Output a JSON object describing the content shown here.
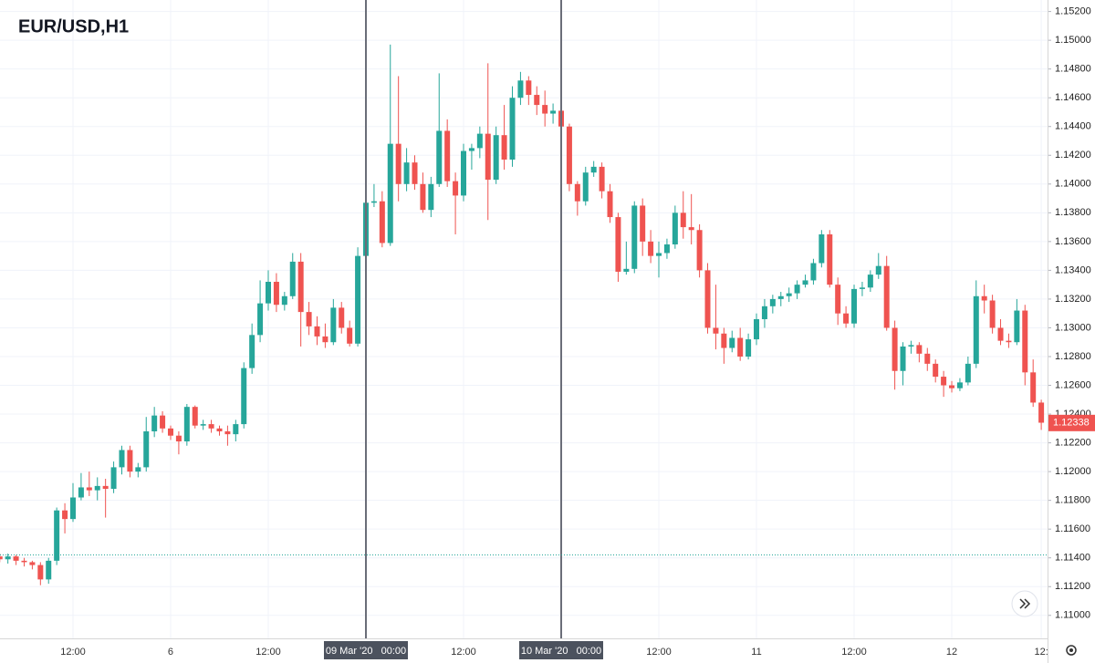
{
  "chart_data": {
    "type": "candlestick",
    "title": "EUR/USD,H1",
    "categories": [
      null,
      null,
      null,
      null,
      null,
      null,
      null,
      null,
      null,
      "12:00",
      null,
      null,
      null,
      null,
      null,
      null,
      null,
      null,
      null,
      null,
      null,
      "6",
      null,
      null,
      null,
      null,
      null,
      null,
      null,
      null,
      null,
      null,
      null,
      "12:00",
      null,
      null,
      null,
      null,
      null,
      null,
      null,
      null,
      null,
      null,
      null,
      "09 Mar '20   00:00",
      null,
      null,
      null,
      null,
      null,
      null,
      null,
      null,
      null,
      null,
      null,
      "12:00",
      null,
      null,
      null,
      null,
      null,
      null,
      null,
      null,
      null,
      null,
      null,
      "10 Mar '20   00:00",
      null,
      null,
      null,
      null,
      null,
      null,
      null,
      null,
      null,
      null,
      null,
      "12:00",
      null,
      null,
      null,
      null,
      null,
      null,
      null,
      null,
      null,
      null,
      null,
      "11",
      null,
      null,
      null,
      null,
      null,
      null,
      null,
      null,
      null,
      null,
      null,
      "12:00",
      null,
      null,
      null,
      null,
      null,
      null,
      null,
      null,
      null,
      null,
      null,
      "12",
      null,
      null,
      null,
      null,
      null,
      null,
      null,
      null,
      null,
      null,
      "12:"
    ],
    "open": [
      1.1141,
      1.1139,
      1.1141,
      1.1138,
      1.1137,
      1.1135,
      1.1125,
      1.1138,
      1.1173,
      1.1167,
      1.1182,
      1.1189,
      1.1187,
      1.119,
      1.1188,
      1.1203,
      1.1215,
      1.12,
      1.1203,
      1.1228,
      1.1239,
      1.123,
      1.1225,
      1.1221,
      1.1245,
      1.1232,
      1.1233,
      1.123,
      1.1228,
      1.1226,
      1.1233,
      1.1272,
      1.1295,
      1.1317,
      1.1332,
      1.1316,
      1.1322,
      1.1346,
      1.1311,
      1.1301,
      1.1294,
      1.129,
      1.1314,
      1.13,
      1.1289,
      1.135,
      1.1387,
      1.1388,
      1.1359,
      1.1428,
      1.14,
      1.1415,
      1.14,
      1.1382,
      1.14,
      1.1437,
      1.1402,
      1.1392,
      1.1423,
      1.1425,
      1.1435,
      1.1403,
      1.1434,
      1.1417,
      1.146,
      1.1472,
      1.1462,
      1.1455,
      1.1449,
      1.1451,
      1.144,
      1.14,
      1.1388,
      1.1408,
      1.1412,
      1.1395,
      1.1377,
      1.1339,
      1.1341,
      1.1385,
      1.136,
      1.135,
      1.1352,
      1.1358,
      1.138,
      1.137,
      1.1368,
      1.134,
      1.13,
      1.1296,
      1.1286,
      1.1293,
      1.128,
      1.1292,
      1.1306,
      1.1315,
      1.132,
      1.1322,
      1.1324,
      1.133,
      1.1333,
      1.1345,
      1.1365,
      1.133,
      1.131,
      1.1303,
      1.1327,
      1.1328,
      1.1337,
      1.1343,
      1.13,
      1.127,
      1.1287,
      1.1288,
      1.1282,
      1.1275,
      1.1266,
      1.126,
      1.1258,
      1.1262,
      1.1275,
      1.1322,
      1.1319,
      1.13,
      1.1291,
      1.129,
      1.1312,
      1.1269,
      1.1248
    ],
    "high": [
      1.1143,
      1.1143,
      1.1142,
      1.114,
      1.1138,
      1.1137,
      1.114,
      1.1175,
      1.1178,
      1.1192,
      1.1199,
      1.12,
      1.1196,
      1.1195,
      1.1207,
      1.1218,
      1.1218,
      1.1206,
      1.1238,
      1.1245,
      1.1242,
      1.1232,
      1.1228,
      1.1247,
      1.1246,
      1.1236,
      1.1236,
      1.1232,
      1.1232,
      1.1236,
      1.1276,
      1.1303,
      1.1333,
      1.134,
      1.1338,
      1.1325,
      1.1352,
      1.1352,
      1.1318,
      1.1308,
      1.1303,
      1.132,
      1.1318,
      1.1305,
      1.1356,
      1.1395,
      1.14,
      1.1395,
      1.1497,
      1.1475,
      1.1425,
      1.142,
      1.1408,
      1.1405,
      1.1477,
      1.1445,
      1.1408,
      1.1428,
      1.1428,
      1.144,
      1.1484,
      1.144,
      1.1455,
      1.1468,
      1.1478,
      1.1475,
      1.1468,
      1.1465,
      1.1456,
      1.1455,
      1.1442,
      1.1402,
      1.1412,
      1.1416,
      1.1415,
      1.14,
      1.138,
      1.136,
      1.1388,
      1.139,
      1.1368,
      1.136,
      1.1362,
      1.1385,
      1.1395,
      1.1393,
      1.1372,
      1.1345,
      1.133,
      1.13,
      1.1298,
      1.13,
      1.1296,
      1.131,
      1.132,
      1.1323,
      1.1325,
      1.1328,
      1.1333,
      1.1337,
      1.1348,
      1.1368,
      1.1368,
      1.1335,
      1.1315,
      1.133,
      1.1332,
      1.134,
      1.1352,
      1.135,
      1.1305,
      1.129,
      1.1291,
      1.129,
      1.1286,
      1.1278,
      1.127,
      1.1263,
      1.1265,
      1.128,
      1.1333,
      1.133,
      1.1323,
      1.1306,
      1.1296,
      1.132,
      1.1316,
      1.1278,
      1.125
    ],
    "low": [
      1.1137,
      1.1136,
      1.1135,
      1.1134,
      1.1132,
      1.1121,
      1.1122,
      1.1135,
      1.1157,
      1.1165,
      1.118,
      1.1183,
      1.118,
      1.1168,
      1.1185,
      1.1198,
      1.1196,
      1.1196,
      1.12,
      1.1224,
      1.1227,
      1.1222,
      1.1212,
      1.1218,
      1.123,
      1.1229,
      1.1227,
      1.1225,
      1.1218,
      1.1221,
      1.123,
      1.1268,
      1.129,
      1.1312,
      1.1311,
      1.1312,
      1.132,
      1.1287,
      1.1295,
      1.1288,
      1.1286,
      1.1288,
      1.1296,
      1.1287,
      1.1287,
      1.1348,
      1.1384,
      1.1356,
      1.1357,
      1.1388,
      1.1395,
      1.1396,
      1.138,
      1.1377,
      1.1398,
      1.1398,
      1.1365,
      1.1388,
      1.141,
      1.1418,
      1.1375,
      1.14,
      1.141,
      1.1412,
      1.1455,
      1.1455,
      1.1448,
      1.144,
      1.1442,
      1.1425,
      1.1395,
      1.1378,
      1.1385,
      1.1405,
      1.139,
      1.1373,
      1.1332,
      1.1337,
      1.1338,
      1.135,
      1.1345,
      1.1335,
      1.1348,
      1.1355,
      1.1362,
      1.1358,
      1.1335,
      1.1296,
      1.1285,
      1.1275,
      1.1283,
      1.1277,
      1.1278,
      1.1288,
      1.13,
      1.131,
      1.1315,
      1.1318,
      1.132,
      1.1328,
      1.133,
      1.1342,
      1.1328,
      1.1302,
      1.13,
      1.13,
      1.1322,
      1.1325,
      1.1334,
      1.1298,
      1.1257,
      1.126,
      1.1282,
      1.1276,
      1.127,
      1.1262,
      1.1252,
      1.1255,
      1.1256,
      1.126,
      1.1272,
      1.131,
      1.1296,
      1.1288,
      1.1286,
      1.1288,
      1.126,
      1.1245,
      1.1229
    ],
    "close": [
      1.1139,
      1.1141,
      1.1138,
      1.1137,
      1.1135,
      1.1125,
      1.1138,
      1.1173,
      1.1167,
      1.1182,
      1.1189,
      1.1187,
      1.119,
      1.1188,
      1.1203,
      1.1215,
      1.12,
      1.1203,
      1.1228,
      1.1239,
      1.123,
      1.1225,
      1.1221,
      1.1245,
      1.1232,
      1.1233,
      1.123,
      1.1228,
      1.1226,
      1.1233,
      1.1272,
      1.1295,
      1.1317,
      1.1332,
      1.1316,
      1.1322,
      1.1346,
      1.1311,
      1.1301,
      1.1294,
      1.129,
      1.1314,
      1.13,
      1.1289,
      1.135,
      1.1387,
      1.1388,
      1.1359,
      1.1428,
      1.14,
      1.1415,
      1.14,
      1.1382,
      1.14,
      1.1437,
      1.1402,
      1.1392,
      1.1423,
      1.1425,
      1.1435,
      1.1403,
      1.1434,
      1.1417,
      1.146,
      1.1472,
      1.1462,
      1.1455,
      1.1449,
      1.1451,
      1.144,
      1.14,
      1.1388,
      1.1408,
      1.1412,
      1.1395,
      1.1377,
      1.1339,
      1.1341,
      1.1385,
      1.136,
      1.135,
      1.1352,
      1.1358,
      1.138,
      1.137,
      1.1368,
      1.134,
      1.13,
      1.1296,
      1.1286,
      1.1293,
      1.128,
      1.1292,
      1.1306,
      1.1315,
      1.132,
      1.1322,
      1.1324,
      1.133,
      1.1333,
      1.1345,
      1.1365,
      1.133,
      1.131,
      1.1303,
      1.1327,
      1.1328,
      1.1337,
      1.1343,
      1.13,
      1.127,
      1.1287,
      1.1288,
      1.1282,
      1.1275,
      1.1266,
      1.126,
      1.1258,
      1.1262,
      1.1275,
      1.1322,
      1.1319,
      1.13,
      1.1291,
      1.129,
      1.1312,
      1.1269,
      1.1248,
      1.1234
    ],
    "up_color": "#26a69a",
    "down_color": "#ef5350",
    "ylim": [
      1.1084,
      1.1528
    ],
    "yticks": [
      {
        "value": 1.11,
        "label": "1.11000"
      },
      {
        "value": 1.112,
        "label": "1.11200"
      },
      {
        "value": 1.114,
        "label": "1.11400"
      },
      {
        "value": 1.116,
        "label": "1.11600"
      },
      {
        "value": 1.118,
        "label": "1.11800"
      },
      {
        "value": 1.12,
        "label": "1.12000"
      },
      {
        "value": 1.122,
        "label": "1.12200"
      },
      {
        "value": 1.124,
        "label": "1.12400"
      },
      {
        "value": 1.126,
        "label": "1.12600"
      },
      {
        "value": 1.128,
        "label": "1.12800"
      },
      {
        "value": 1.13,
        "label": "1.13000"
      },
      {
        "value": 1.132,
        "label": "1.13200"
      },
      {
        "value": 1.134,
        "label": "1.13400"
      },
      {
        "value": 1.136,
        "label": "1.13600"
      },
      {
        "value": 1.138,
        "label": "1.13800"
      },
      {
        "value": 1.14,
        "label": "1.14000"
      },
      {
        "value": 1.142,
        "label": "1.14200"
      },
      {
        "value": 1.144,
        "label": "1.14400"
      },
      {
        "value": 1.146,
        "label": "1.14600"
      },
      {
        "value": 1.148,
        "label": "1.14800"
      },
      {
        "value": 1.15,
        "label": "1.15000"
      },
      {
        "value": 1.152,
        "label": "1.15200"
      }
    ],
    "grid": true,
    "last_price": 1.12338,
    "price_line": 1.1142
  }
}
